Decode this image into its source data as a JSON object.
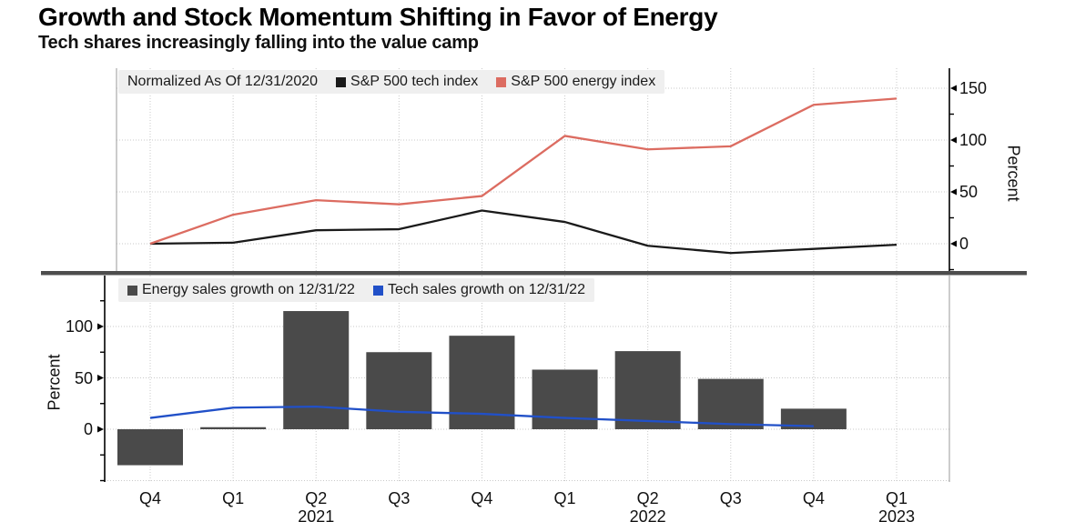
{
  "title": "Growth and Stock Momentum Shifting in Favor of Energy",
  "subtitle": "Tech shares increasingly falling into the value camp",
  "chart_data": [
    {
      "type": "line",
      "panel": "top",
      "note": "Normalized As Of 12/31/2020",
      "categories": [
        "Q4",
        "Q1",
        "Q2",
        "Q3",
        "Q4",
        "Q1",
        "Q2",
        "Q3",
        "Q4",
        "Q1"
      ],
      "series": [
        {
          "name": "S&P 500 tech index",
          "type": "line",
          "color": "#1a1a1a",
          "values": [
            0,
            1,
            13,
            14,
            32,
            21,
            -2,
            -9,
            -5,
            -1
          ]
        },
        {
          "name": "S&P 500 energy index",
          "type": "line",
          "color": "#dc6c61",
          "values": [
            0,
            28,
            42,
            38,
            46,
            104,
            91,
            94,
            134,
            140
          ]
        }
      ],
      "ylabel": "Percent",
      "y_axis_side": "right",
      "yticks": [
        0,
        50,
        100,
        150
      ],
      "minor_ticks": [
        -25,
        25,
        75,
        125
      ],
      "gridline_values": [
        0,
        50,
        100,
        150
      ],
      "ylim": [
        -26,
        170
      ],
      "legend_position": "top-left",
      "grid": true
    },
    {
      "type": "bar",
      "panel": "bottom",
      "categories": [
        "Q4",
        "Q1",
        "Q2",
        "Q3",
        "Q4",
        "Q1",
        "Q2",
        "Q3",
        "Q4",
        "Q1"
      ],
      "year_labels": [
        {
          "index": 2,
          "label": "2021"
        },
        {
          "index": 6,
          "label": "2022"
        },
        {
          "index": 9,
          "label": "2023"
        }
      ],
      "series": [
        {
          "name": "Energy sales growth on 12/31/22",
          "type": "bar",
          "color": "#4a4a4a",
          "values": [
            -35,
            2,
            115,
            75,
            91,
            58,
            76,
            49,
            20,
            null
          ]
        },
        {
          "name": "Tech sales growth on 12/31/22",
          "type": "line",
          "color": "#2150c8",
          "values": [
            11,
            21,
            22,
            17,
            15,
            11,
            8,
            5,
            3,
            null
          ]
        }
      ],
      "ylabel": "Percent",
      "y_axis_side": "left",
      "yticks": [
        0,
        50,
        100
      ],
      "minor_ticks": [
        -50,
        -25,
        25,
        75,
        125
      ],
      "gridline_values": [
        -50,
        0,
        50,
        100
      ],
      "ylim": [
        -51,
        150
      ],
      "legend_position": "top-left",
      "grid": true
    }
  ],
  "colors": {
    "background": "#ffffff",
    "grid": "#c9c9c9",
    "divider": "#4d4d4d",
    "axis": "#000000",
    "spine": "#9a9a9a",
    "legend_bg": "#efefef"
  }
}
